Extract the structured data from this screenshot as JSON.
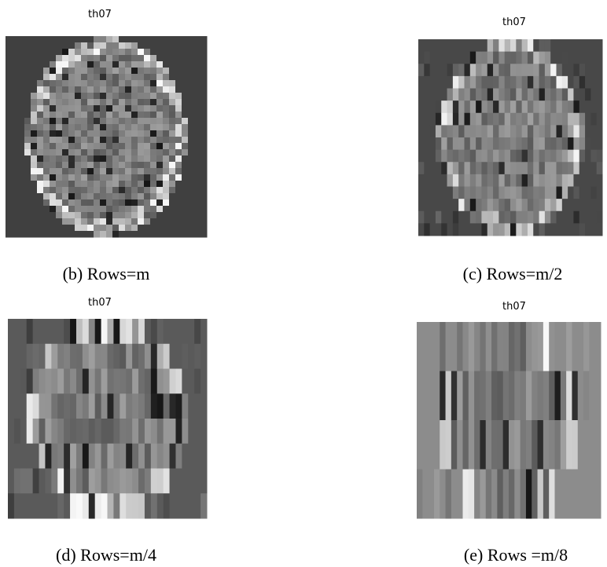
{
  "panels": [
    {
      "title": "th07",
      "caption": "(b) Rows=m"
    },
    {
      "title": "th07",
      "caption": "(c) Rows=m/2"
    },
    {
      "title": "th07",
      "caption": "(d) Rows=m/4"
    },
    {
      "title": "th07",
      "caption": "(e) Rows =m/8"
    }
  ]
}
